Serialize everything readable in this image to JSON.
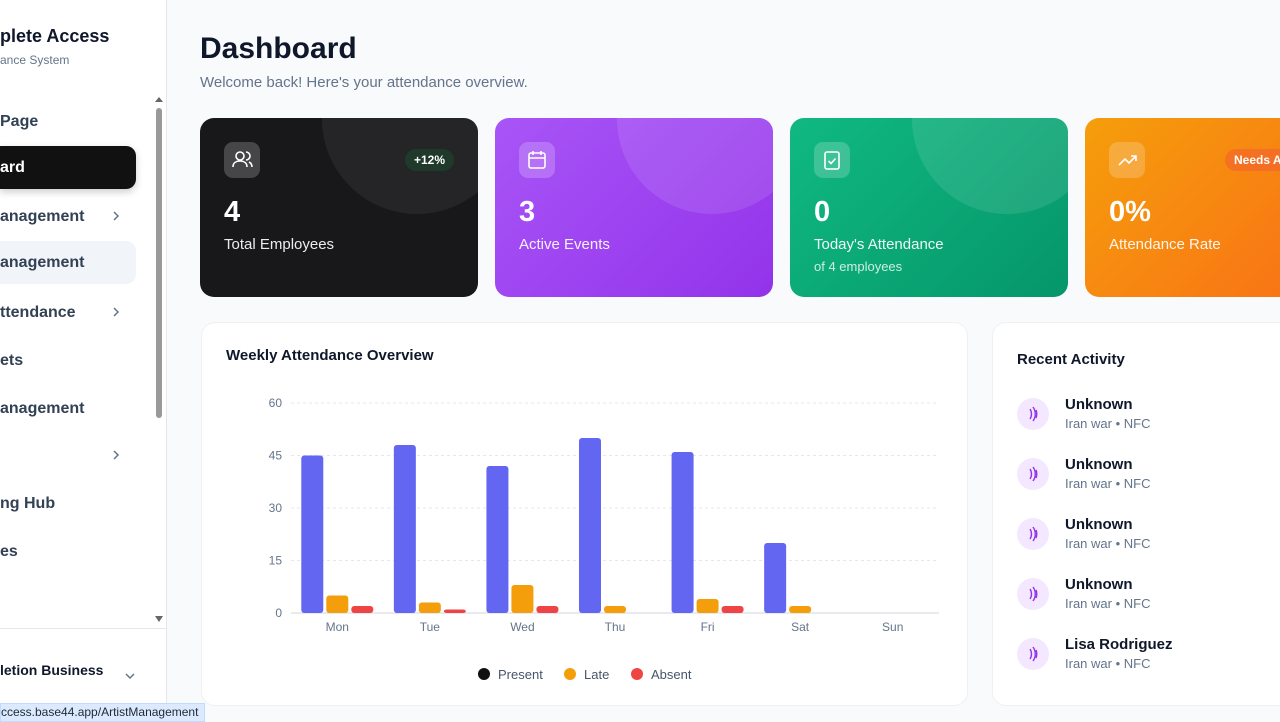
{
  "sidebar": {
    "brand": "plete Access",
    "subtitle": "ance System",
    "nav": [
      "Page",
      "ard",
      "anagement",
      "anagement",
      "ttendance",
      "ets",
      "anagement",
      "ng Hub",
      "es"
    ],
    "footer": "letion Business"
  },
  "status_url": "ccess.base44.app/ArtistManagement",
  "header": {
    "title": "Dashboard",
    "subtitle": "Welcome back! Here's your attendance overview."
  },
  "cards": [
    {
      "value": "4",
      "label": "Total Employees",
      "badge": "+12%"
    },
    {
      "value": "3",
      "label": "Active Events"
    },
    {
      "value": "0",
      "label": "Today's Attendance",
      "note": "of 4 employees"
    },
    {
      "value": "0%",
      "label": "Attendance Rate",
      "badge": "Needs A"
    }
  ],
  "chart_data": {
    "type": "bar",
    "title": "Weekly Attendance Overview",
    "categories": [
      "Mon",
      "Tue",
      "Wed",
      "Thu",
      "Fri",
      "Sat",
      "Sun"
    ],
    "series": [
      {
        "name": "Present",
        "color": "#6366f1",
        "legend_color": "#111111",
        "values": [
          45,
          48,
          42,
          50,
          46,
          20,
          0
        ]
      },
      {
        "name": "Late",
        "color": "#f59e0b",
        "legend_color": "#f59e0b",
        "values": [
          5,
          3,
          8,
          2,
          4,
          2,
          0
        ]
      },
      {
        "name": "Absent",
        "color": "#ef4444",
        "legend_color": "#ef4444",
        "values": [
          2,
          1,
          2,
          0,
          2,
          0,
          0
        ]
      }
    ],
    "ylim": [
      0,
      60
    ],
    "yticks": [
      0,
      15,
      30,
      45,
      60
    ],
    "grid": true
  },
  "activity": {
    "title": "Recent Activity",
    "items": [
      {
        "name": "Unknown",
        "detail": "Iran war • NFC"
      },
      {
        "name": "Unknown",
        "detail": "Iran war • NFC"
      },
      {
        "name": "Unknown",
        "detail": "Iran war • NFC"
      },
      {
        "name": "Unknown",
        "detail": "Iran war • NFC"
      },
      {
        "name": "Lisa Rodriguez",
        "detail": "Iran war • NFC"
      }
    ]
  }
}
